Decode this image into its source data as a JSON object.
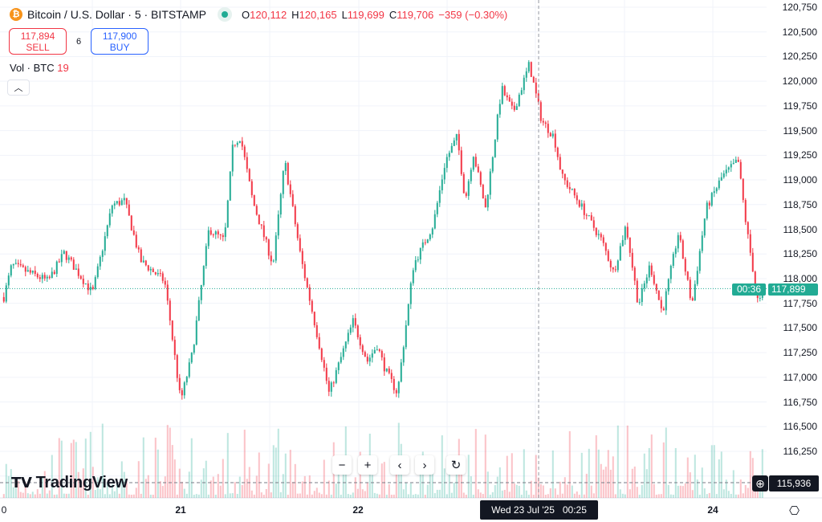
{
  "header": {
    "symbol": "Bitcoin / U.S. Dollar · 5 · BITSTAMP",
    "icon": "bitcoin-icon",
    "o_label": "O",
    "o": "120,112",
    "h_label": "H",
    "h": "120,165",
    "l_label": "L",
    "l": "119,699",
    "c_label": "C",
    "c": "119,706",
    "change": "−359 (−0.30%)"
  },
  "trade": {
    "sell_price": "117,894",
    "sell_label": "SELL",
    "spread": "6",
    "buy_price": "117,900",
    "buy_label": "BUY"
  },
  "volume": {
    "label": "Vol · BTC",
    "value": "19"
  },
  "branding": {
    "logo": "TradingView"
  },
  "nav": {
    "zoom_out": "−",
    "zoom_in": "+",
    "left": "‹",
    "right": "›",
    "reset": "↻"
  },
  "current": {
    "price": "117,899",
    "countdown": "00:36"
  },
  "crosshair": {
    "price": "115,936",
    "time": "Wed 23 Jul '25   00:25"
  },
  "colors": {
    "up": "#22ab94",
    "down": "#f23645",
    "accent": "#2962ff"
  },
  "chart_data": {
    "type": "candlestick",
    "interval": "5",
    "y_ticks": [
      "120,750",
      "120,500",
      "120,250",
      "120,000",
      "119,750",
      "119,500",
      "119,250",
      "119,000",
      "118,750",
      "118,500",
      "118,250",
      "118,000",
      "117,750",
      "117,500",
      "117,250",
      "117,000",
      "116,750",
      "116,500",
      "116,250"
    ],
    "ylim": [
      116000,
      120800
    ],
    "x_ticks": [
      {
        "label": "0",
        "t": "2025-07-20T00:00"
      },
      {
        "label": "21",
        "t": "2025-07-21T00:00"
      },
      {
        "label": "22",
        "t": "2025-07-22T00:00"
      },
      {
        "label": "24",
        "t": "2025-07-24T00:00"
      }
    ],
    "price_path": [
      [
        "2025-07-20T00:05",
        117813
      ],
      [
        "2025-07-20T01:10",
        118138
      ],
      [
        "2025-07-20T06:05",
        117975
      ],
      [
        "2025-07-20T08:15",
        118260
      ],
      [
        "2025-07-20T12:05",
        117853
      ],
      [
        "2025-07-20T14:45",
        118748
      ],
      [
        "2025-07-20T16:25",
        118789
      ],
      [
        "2025-07-20T18:35",
        118180
      ],
      [
        "2025-07-20T21:50",
        117975
      ],
      [
        "2025-07-20T22:35",
        117569
      ],
      [
        "2025-07-21T00:00",
        116755
      ],
      [
        "2025-07-21T01:35",
        117243
      ],
      [
        "2025-07-21T03:50",
        118504
      ],
      [
        "2025-07-21T05:55",
        118382
      ],
      [
        "2025-07-21T07:05",
        119359
      ],
      [
        "2025-07-21T08:05",
        119440
      ],
      [
        "2025-07-21T09:45",
        118789
      ],
      [
        "2025-07-21T12:30",
        118138
      ],
      [
        "2025-07-21T14:05",
        119196
      ],
      [
        "2025-07-21T16:15",
        118219
      ],
      [
        "2025-07-21T19:00",
        117243
      ],
      [
        "2025-07-21T20:05",
        116836
      ],
      [
        "2025-07-21T23:20",
        117569
      ],
      [
        "2025-07-22T01:15",
        117162
      ],
      [
        "2025-07-22T02:35",
        117325
      ],
      [
        "2025-07-22T03:40",
        117080
      ],
      [
        "2025-07-22T05:20",
        116836
      ],
      [
        "2025-07-22T07:30",
        118138
      ],
      [
        "2025-07-22T10:10",
        118545
      ],
      [
        "2025-07-22T11:50",
        119196
      ],
      [
        "2025-07-22T13:25",
        119440
      ],
      [
        "2025-07-22T14:30",
        118789
      ],
      [
        "2025-07-22T15:35",
        119277
      ],
      [
        "2025-07-22T17:15",
        118708
      ],
      [
        "2025-07-22T19:25",
        119928
      ],
      [
        "2025-07-22T21:00",
        119684
      ],
      [
        "2025-07-22T23:10",
        120172
      ],
      [
        "2025-07-23T00:50",
        119603
      ],
      [
        "2025-07-23T02:30",
        119440
      ],
      [
        "2025-07-23T03:35",
        119033
      ],
      [
        "2025-07-23T05:45",
        118789
      ],
      [
        "2025-07-23T09:00",
        118382
      ],
      [
        "2025-07-23T10:35",
        118057
      ],
      [
        "2025-07-23T12:15",
        118545
      ],
      [
        "2025-07-23T13:55",
        117731
      ],
      [
        "2025-07-23T15:30",
        118138
      ],
      [
        "2025-07-23T17:10",
        117650
      ],
      [
        "2025-07-23T19:20",
        118463
      ],
      [
        "2025-07-23T21:10",
        117731
      ],
      [
        "2025-07-23T23:05",
        118708
      ],
      [
        "2025-07-24T01:15",
        119033
      ],
      [
        "2025-07-24T03:25",
        119196
      ],
      [
        "2025-07-24T04:30",
        118545
      ],
      [
        "2025-07-24T06:10",
        117731
      ],
      [
        "2025-07-24T06:55",
        117894
      ]
    ],
    "last_price": 117899,
    "crosshair_price": 115936
  }
}
